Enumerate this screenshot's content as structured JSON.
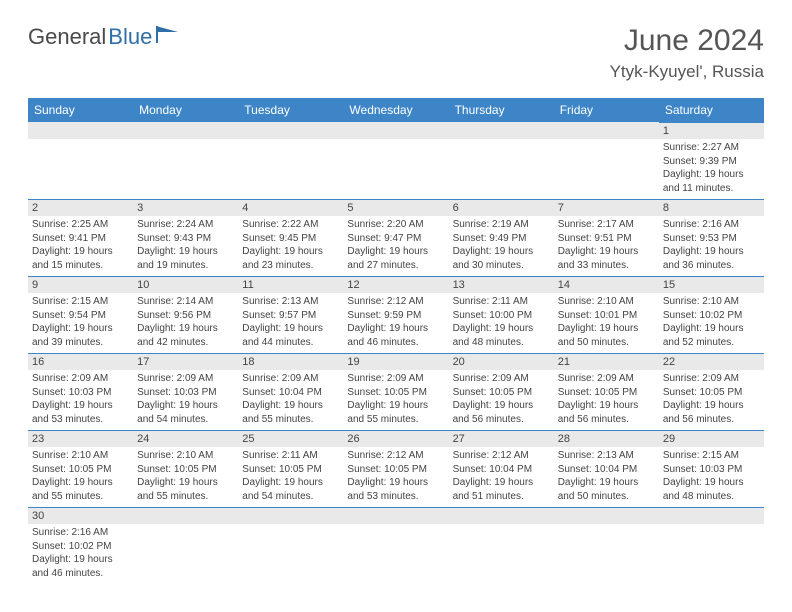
{
  "logo": {
    "part1": "General",
    "part2": "Blue"
  },
  "header": {
    "month_title": "June 2024",
    "location": "Ytyk-Kyuyel', Russia"
  },
  "colors": {
    "header_bg": "#3d85c6",
    "header_fg": "#ffffff",
    "daybar_bg": "#e9e9e9",
    "divider": "#3d85c6",
    "text": "#444444",
    "page_bg": "#ffffff",
    "logo_gray": "#4a4a4a",
    "logo_blue": "#2f6fa7"
  },
  "day_headers": [
    "Sunday",
    "Monday",
    "Tuesday",
    "Wednesday",
    "Thursday",
    "Friday",
    "Saturday"
  ],
  "weeks": [
    [
      {
        "empty": true
      },
      {
        "empty": true
      },
      {
        "empty": true
      },
      {
        "empty": true
      },
      {
        "empty": true
      },
      {
        "empty": true
      },
      {
        "day": "1",
        "sunrise": "Sunrise: 2:27 AM",
        "sunset": "Sunset: 9:39 PM",
        "daylight": "Daylight: 19 hours and 11 minutes."
      }
    ],
    [
      {
        "day": "2",
        "sunrise": "Sunrise: 2:25 AM",
        "sunset": "Sunset: 9:41 PM",
        "daylight": "Daylight: 19 hours and 15 minutes."
      },
      {
        "day": "3",
        "sunrise": "Sunrise: 2:24 AM",
        "sunset": "Sunset: 9:43 PM",
        "daylight": "Daylight: 19 hours and 19 minutes."
      },
      {
        "day": "4",
        "sunrise": "Sunrise: 2:22 AM",
        "sunset": "Sunset: 9:45 PM",
        "daylight": "Daylight: 19 hours and 23 minutes."
      },
      {
        "day": "5",
        "sunrise": "Sunrise: 2:20 AM",
        "sunset": "Sunset: 9:47 PM",
        "daylight": "Daylight: 19 hours and 27 minutes."
      },
      {
        "day": "6",
        "sunrise": "Sunrise: 2:19 AM",
        "sunset": "Sunset: 9:49 PM",
        "daylight": "Daylight: 19 hours and 30 minutes."
      },
      {
        "day": "7",
        "sunrise": "Sunrise: 2:17 AM",
        "sunset": "Sunset: 9:51 PM",
        "daylight": "Daylight: 19 hours and 33 minutes."
      },
      {
        "day": "8",
        "sunrise": "Sunrise: 2:16 AM",
        "sunset": "Sunset: 9:53 PM",
        "daylight": "Daylight: 19 hours and 36 minutes."
      }
    ],
    [
      {
        "day": "9",
        "sunrise": "Sunrise: 2:15 AM",
        "sunset": "Sunset: 9:54 PM",
        "daylight": "Daylight: 19 hours and 39 minutes."
      },
      {
        "day": "10",
        "sunrise": "Sunrise: 2:14 AM",
        "sunset": "Sunset: 9:56 PM",
        "daylight": "Daylight: 19 hours and 42 minutes."
      },
      {
        "day": "11",
        "sunrise": "Sunrise: 2:13 AM",
        "sunset": "Sunset: 9:57 PM",
        "daylight": "Daylight: 19 hours and 44 minutes."
      },
      {
        "day": "12",
        "sunrise": "Sunrise: 2:12 AM",
        "sunset": "Sunset: 9:59 PM",
        "daylight": "Daylight: 19 hours and 46 minutes."
      },
      {
        "day": "13",
        "sunrise": "Sunrise: 2:11 AM",
        "sunset": "Sunset: 10:00 PM",
        "daylight": "Daylight: 19 hours and 48 minutes."
      },
      {
        "day": "14",
        "sunrise": "Sunrise: 2:10 AM",
        "sunset": "Sunset: 10:01 PM",
        "daylight": "Daylight: 19 hours and 50 minutes."
      },
      {
        "day": "15",
        "sunrise": "Sunrise: 2:10 AM",
        "sunset": "Sunset: 10:02 PM",
        "daylight": "Daylight: 19 hours and 52 minutes."
      }
    ],
    [
      {
        "day": "16",
        "sunrise": "Sunrise: 2:09 AM",
        "sunset": "Sunset: 10:03 PM",
        "daylight": "Daylight: 19 hours and 53 minutes."
      },
      {
        "day": "17",
        "sunrise": "Sunrise: 2:09 AM",
        "sunset": "Sunset: 10:03 PM",
        "daylight": "Daylight: 19 hours and 54 minutes."
      },
      {
        "day": "18",
        "sunrise": "Sunrise: 2:09 AM",
        "sunset": "Sunset: 10:04 PM",
        "daylight": "Daylight: 19 hours and 55 minutes."
      },
      {
        "day": "19",
        "sunrise": "Sunrise: 2:09 AM",
        "sunset": "Sunset: 10:05 PM",
        "daylight": "Daylight: 19 hours and 55 minutes."
      },
      {
        "day": "20",
        "sunrise": "Sunrise: 2:09 AM",
        "sunset": "Sunset: 10:05 PM",
        "daylight": "Daylight: 19 hours and 56 minutes."
      },
      {
        "day": "21",
        "sunrise": "Sunrise: 2:09 AM",
        "sunset": "Sunset: 10:05 PM",
        "daylight": "Daylight: 19 hours and 56 minutes."
      },
      {
        "day": "22",
        "sunrise": "Sunrise: 2:09 AM",
        "sunset": "Sunset: 10:05 PM",
        "daylight": "Daylight: 19 hours and 56 minutes."
      }
    ],
    [
      {
        "day": "23",
        "sunrise": "Sunrise: 2:10 AM",
        "sunset": "Sunset: 10:05 PM",
        "daylight": "Daylight: 19 hours and 55 minutes."
      },
      {
        "day": "24",
        "sunrise": "Sunrise: 2:10 AM",
        "sunset": "Sunset: 10:05 PM",
        "daylight": "Daylight: 19 hours and 55 minutes."
      },
      {
        "day": "25",
        "sunrise": "Sunrise: 2:11 AM",
        "sunset": "Sunset: 10:05 PM",
        "daylight": "Daylight: 19 hours and 54 minutes."
      },
      {
        "day": "26",
        "sunrise": "Sunrise: 2:12 AM",
        "sunset": "Sunset: 10:05 PM",
        "daylight": "Daylight: 19 hours and 53 minutes."
      },
      {
        "day": "27",
        "sunrise": "Sunrise: 2:12 AM",
        "sunset": "Sunset: 10:04 PM",
        "daylight": "Daylight: 19 hours and 51 minutes."
      },
      {
        "day": "28",
        "sunrise": "Sunrise: 2:13 AM",
        "sunset": "Sunset: 10:04 PM",
        "daylight": "Daylight: 19 hours and 50 minutes."
      },
      {
        "day": "29",
        "sunrise": "Sunrise: 2:15 AM",
        "sunset": "Sunset: 10:03 PM",
        "daylight": "Daylight: 19 hours and 48 minutes."
      }
    ],
    [
      {
        "day": "30",
        "sunrise": "Sunrise: 2:16 AM",
        "sunset": "Sunset: 10:02 PM",
        "daylight": "Daylight: 19 hours and 46 minutes."
      },
      {
        "empty": true
      },
      {
        "empty": true
      },
      {
        "empty": true
      },
      {
        "empty": true
      },
      {
        "empty": true
      },
      {
        "empty": true
      }
    ]
  ]
}
